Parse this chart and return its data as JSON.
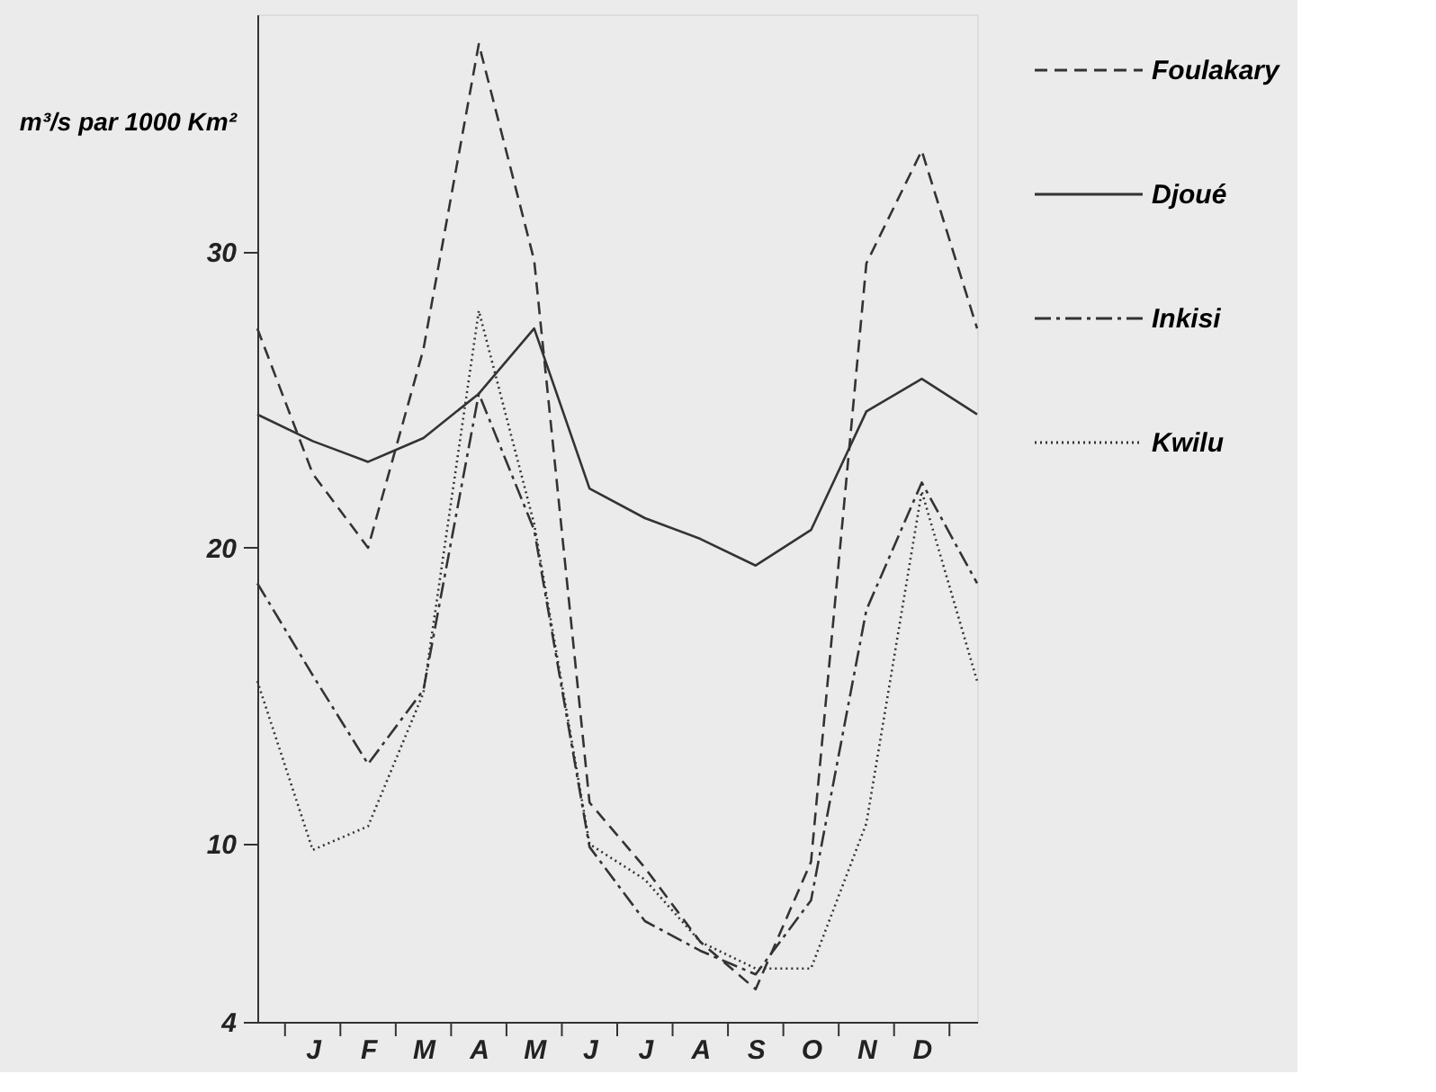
{
  "chart_data": {
    "type": "line",
    "ylabel": "m³/s par 1000 Km²",
    "categories": [
      null,
      "J",
      "F",
      "M",
      "A",
      "M",
      "J",
      "J",
      "A",
      "S",
      "O",
      "N",
      "D",
      null
    ],
    "ylim": [
      4,
      38
    ],
    "yticks": [
      4,
      10,
      20,
      30
    ],
    "grid": false,
    "legend": "right",
    "marker": "none",
    "series": [
      {
        "name": "Foulakary",
        "color": "#333333",
        "line_style": "dashed",
        "values": [
          27.4,
          22.5,
          20.0,
          26.7,
          37.0,
          29.7,
          11.4,
          9.2,
          6.7,
          5.1,
          9.4,
          29.6,
          33.4,
          27.4
        ]
      },
      {
        "name": "Djoué",
        "color": "#333333",
        "line_style": "solid",
        "values": [
          24.5,
          23.6,
          22.9,
          23.7,
          25.2,
          27.4,
          22.0,
          21.0,
          20.3,
          19.4,
          20.6,
          24.6,
          25.7,
          24.5
        ]
      },
      {
        "name": "Inkisi",
        "color": "#333333",
        "line_style": "dashdot",
        "values": [
          18.8,
          15.7,
          12.7,
          15.2,
          25.2,
          20.6,
          9.9,
          7.4,
          6.4,
          5.6,
          8.1,
          17.9,
          22.2,
          18.8
        ]
      },
      {
        "name": "Kwilu",
        "color": "#333333",
        "line_style": "dotted",
        "values": [
          15.5,
          9.8,
          10.6,
          15.1,
          28.0,
          20.8,
          10.0,
          8.8,
          6.7,
          5.8,
          5.8,
          10.7,
          21.9,
          15.5
        ]
      }
    ]
  }
}
